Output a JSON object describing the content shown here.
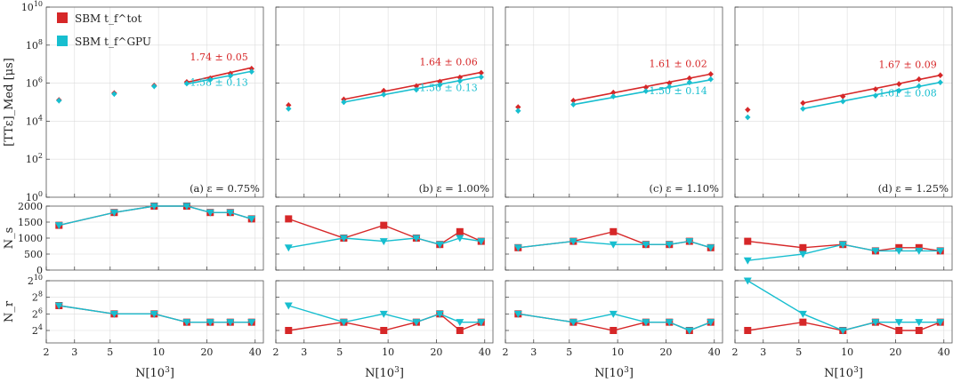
{
  "chart_data": {
    "type": "scatter",
    "colors": {
      "tot": "#d62728",
      "gpu": "#17becf"
    },
    "legend": [
      "SBM t_f^tot",
      "SBM t_f^GPU"
    ],
    "legend_position": "top-left of first panel",
    "xlabel": "N[10^3]",
    "x_ticks": [
      "2",
      "3",
      "5",
      "10",
      "20",
      "40"
    ],
    "x_tick_values": [
      2,
      3,
      5,
      10,
      20,
      40
    ],
    "xlim": [
      2,
      45
    ],
    "x": [
      2.4,
      5.3,
      9.4,
      15,
      21,
      28,
      38
    ],
    "rows": [
      {
        "key": "time",
        "ylabel": "[TTε]_Med [μs]",
        "yscale": "log10",
        "ylim": [
          1,
          10000000000.0
        ],
        "y_ticks": [
          "10^0",
          "10^2",
          "10^4",
          "10^6",
          "10^8",
          "10^10"
        ]
      },
      {
        "key": "Ns",
        "ylabel": "N_s",
        "yscale": "linear",
        "ylim": [
          0,
          2000
        ],
        "y_ticks": [
          "0",
          "500",
          "1000",
          "1500",
          "2000"
        ]
      },
      {
        "key": "Nr",
        "ylabel": "N_r",
        "yscale": "log2",
        "ylim": [
          2.5,
          10
        ],
        "y_ticks": [
          "2^4",
          "2^6",
          "2^8",
          "2^10"
        ]
      }
    ],
    "panels": [
      {
        "label": "(a) ε = 0.75%",
        "time": {
          "tot": [
            130000,
            300000,
            750000,
            1150000,
            1800000,
            3200000,
            5800000
          ],
          "gpu": [
            120000,
            270000,
            680000,
            950000,
            1500000,
            2400000,
            4000000
          ]
        },
        "fits": [
          {
            "series": "tot",
            "label": "1.74 ± 0.05",
            "x": [
              15,
              38
            ],
            "y": [
              1100000,
              6500000
            ]
          },
          {
            "series": "gpu",
            "label": "1.58 ± 0.13",
            "x": [
              15,
              38
            ],
            "y": [
              900000,
              4200000
            ]
          }
        ],
        "Ns": {
          "tot": [
            1400,
            1800,
            2000,
            2000,
            1800,
            1800,
            1600
          ],
          "gpu": [
            1400,
            1800,
            2000,
            2000,
            1800,
            1800,
            1600
          ]
        },
        "Nr": {
          "tot": [
            7,
            6,
            6,
            5,
            5,
            5,
            5
          ],
          "gpu": [
            7,
            6,
            6,
            5,
            5,
            5,
            5
          ]
        }
      },
      {
        "label": "(b) ε = 1.00%",
        "time": {
          "tot": [
            70000,
            140000,
            400000,
            700000,
            1200000,
            2000000,
            3500000
          ],
          "gpu": [
            45000,
            100000,
            250000,
            450000,
            800000,
            1300000,
            2100000
          ]
        },
        "fits": [
          {
            "series": "tot",
            "label": "1.64 ± 0.06",
            "x": [
              5.3,
              38
            ],
            "y": [
              140000,
              3700000
            ]
          },
          {
            "series": "gpu",
            "label": "1.56 ± 0.13",
            "x": [
              5.3,
              38
            ],
            "y": [
              100000,
              2200000
            ]
          }
        ],
        "Ns": {
          "tot": [
            1600,
            1000,
            1400,
            1000,
            800,
            1200,
            900
          ],
          "gpu": [
            700,
            1000,
            900,
            1000,
            800,
            1000,
            900
          ]
        },
        "Nr": {
          "tot": [
            4,
            5,
            4,
            5,
            6,
            4,
            5
          ],
          "gpu": [
            7,
            5,
            6,
            5,
            6,
            5,
            5
          ]
        }
      },
      {
        "label": "(c) ε = 1.10%",
        "time": {
          "tot": [
            55000,
            120000,
            320000,
            600000,
            1000000,
            1800000,
            3000000
          ],
          "gpu": [
            35000,
            75000,
            200000,
            380000,
            650000,
            1100000,
            1600000
          ]
        },
        "fits": [
          {
            "series": "tot",
            "label": "1.61 ± 0.02",
            "x": [
              5.3,
              38
            ],
            "y": [
              120000,
              3000000
            ]
          },
          {
            "series": "gpu",
            "label": "1.50 ± 0.14",
            "x": [
              5.3,
              38
            ],
            "y": [
              75000,
              1500000
            ]
          }
        ],
        "Ns": {
          "tot": [
            700,
            900,
            1200,
            800,
            800,
            900,
            700
          ],
          "gpu": [
            700,
            900,
            800,
            800,
            800,
            900,
            700
          ]
        },
        "Nr": {
          "tot": [
            6,
            5,
            4,
            5,
            5,
            4,
            5
          ],
          "gpu": [
            6,
            5,
            6,
            5,
            5,
            4,
            5
          ]
        }
      },
      {
        "label": "(d) ε = 1.25%",
        "time": {
          "tot": [
            40000,
            90000,
            200000,
            480000,
            900000,
            1600000,
            2600000
          ],
          "gpu": [
            16000,
            45000,
            110000,
            220000,
            400000,
            700000,
            1100000
          ]
        },
        "fits": [
          {
            "series": "tot",
            "label": "1.67 ± 0.09",
            "x": [
              5.3,
              38
            ],
            "y": [
              90000,
              2600000
            ]
          },
          {
            "series": "gpu",
            "label": "1.61 ± 0.08",
            "x": [
              5.3,
              38
            ],
            "y": [
              45000,
              1100000
            ]
          }
        ],
        "Ns": {
          "tot": [
            900,
            700,
            800,
            600,
            700,
            700,
            600
          ],
          "gpu": [
            300,
            500,
            800,
            600,
            600,
            600,
            600
          ]
        },
        "Nr": {
          "tot": [
            4,
            5,
            4,
            5,
            4,
            4,
            5
          ],
          "gpu": [
            10,
            6,
            4,
            5,
            5,
            5,
            5
          ]
        }
      }
    ]
  }
}
